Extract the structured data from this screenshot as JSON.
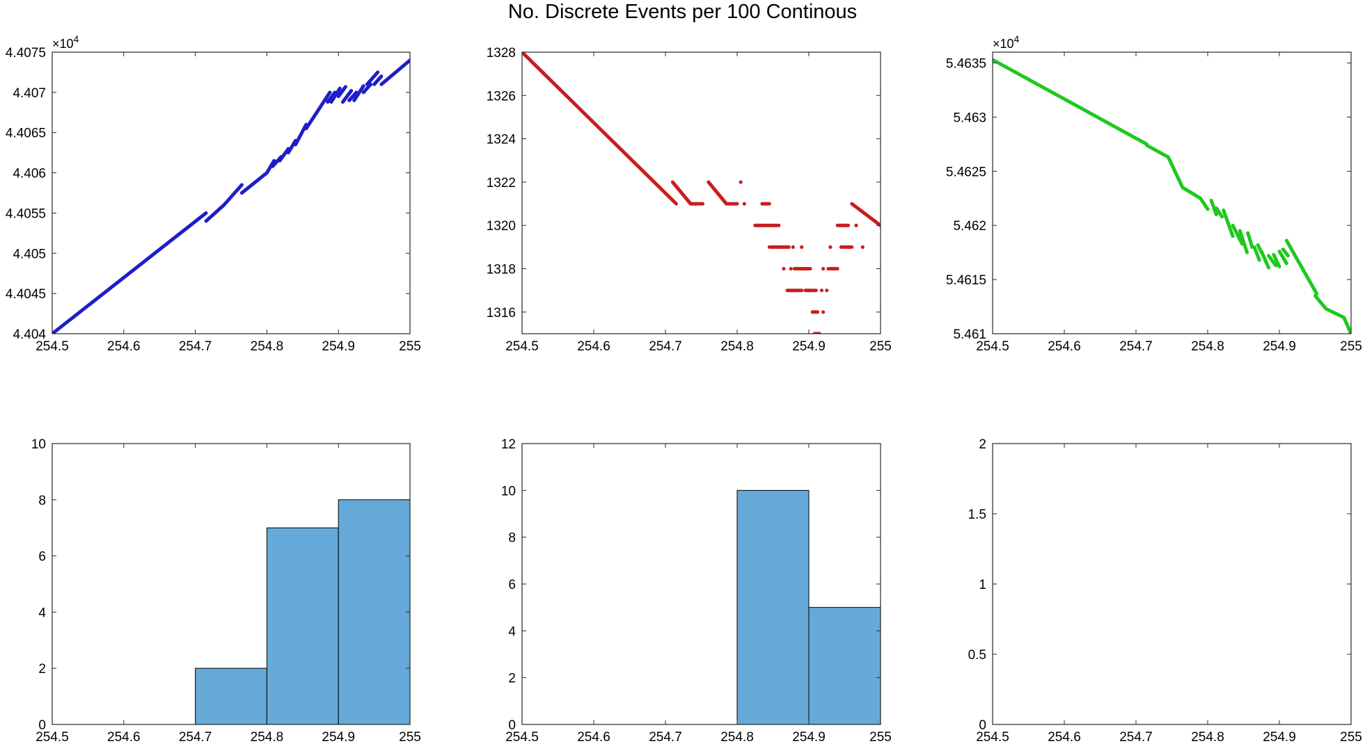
{
  "figure": {
    "title": "No. Discrete Events per 100 Continous"
  },
  "colors": {
    "blue_line": "#1e1ec8",
    "red_line": "#c81e1e",
    "green_line": "#1ec81e",
    "hist_fill": "#65aad8",
    "axis": "#262626"
  },
  "chart_data": [
    {
      "id": "top-left",
      "type": "line",
      "color": "#1e1ec8",
      "xlim": [
        254.5,
        255
      ],
      "ylim": [
        44040,
        44075
      ],
      "xticks": [
        "254.5",
        "254.6",
        "254.7",
        "254.8",
        "254.9",
        "255"
      ],
      "yticks": [
        "4.404",
        "4.4045",
        "4.405",
        "4.4055",
        "4.406",
        "4.4065",
        "4.407",
        "4.4075"
      ],
      "exponent": "4",
      "segments": [
        [
          [
            254.5,
            44040
          ],
          [
            254.715,
            44055
          ]
        ],
        [
          [
            254.715,
            44054
          ],
          [
            254.74,
            44056
          ],
          [
            254.765,
            44058.5
          ]
        ],
        [
          [
            254.765,
            44057.5
          ],
          [
            254.8,
            44060
          ],
          [
            254.81,
            44061.5
          ]
        ],
        [
          [
            254.808,
            44060.8
          ],
          [
            254.82,
            44062
          ]
        ],
        [
          [
            254.818,
            44061.5
          ],
          [
            254.83,
            44063
          ]
        ],
        [
          [
            254.83,
            44062.5
          ],
          [
            254.84,
            44064
          ]
        ],
        [
          [
            254.84,
            44063.5
          ],
          [
            254.855,
            44066
          ]
        ],
        [
          [
            254.855,
            44065.5
          ],
          [
            254.888,
            44070
          ]
        ],
        [
          [
            254.885,
            44068.8
          ],
          [
            254.895,
            44070
          ]
        ],
        [
          [
            254.89,
            44068.8
          ],
          [
            254.902,
            44070.5
          ]
        ],
        [
          [
            254.9,
            44069.5
          ],
          [
            254.91,
            44070.7
          ]
        ],
        [
          [
            254.906,
            44068.8
          ],
          [
            254.918,
            44070.2
          ]
        ],
        [
          [
            254.915,
            44069
          ],
          [
            254.925,
            44070
          ]
        ],
        [
          [
            254.922,
            44069
          ],
          [
            254.935,
            44070.8
          ]
        ],
        [
          [
            254.935,
            44070
          ],
          [
            254.945,
            44071
          ]
        ],
        [
          [
            254.94,
            44071
          ],
          [
            254.955,
            44072.5
          ]
        ],
        [
          [
            254.95,
            44071
          ],
          [
            254.96,
            44072
          ]
        ],
        [
          [
            254.96,
            44071
          ],
          [
            255,
            44074
          ]
        ]
      ]
    },
    {
      "id": "top-middle",
      "type": "line",
      "color": "#c81e1e",
      "xlim": [
        254.5,
        255
      ],
      "ylim": [
        1315,
        1328
      ],
      "xticks": [
        "254.5",
        "254.6",
        "254.7",
        "254.8",
        "254.9",
        "255"
      ],
      "yticks": [
        "1316",
        "1318",
        "1320",
        "1322",
        "1324",
        "1326",
        "1328"
      ],
      "segments": [
        [
          [
            254.5,
            1328
          ],
          [
            254.715,
            1321
          ]
        ],
        [
          [
            254.71,
            1322
          ],
          [
            254.735,
            1321
          ],
          [
            254.752,
            1321
          ]
        ],
        [
          [
            254.76,
            1322
          ],
          [
            254.785,
            1321
          ],
          [
            254.8,
            1321
          ]
        ],
        [
          [
            254.825,
            1320
          ],
          [
            254.855,
            1320
          ]
        ],
        [
          [
            254.835,
            1321
          ],
          [
            254.845,
            1321
          ]
        ],
        [
          [
            254.845,
            1319
          ],
          [
            254.87,
            1319
          ]
        ],
        [
          [
            254.87,
            1317
          ],
          [
            254.89,
            1317
          ]
        ],
        [
          [
            254.88,
            1318
          ],
          [
            254.902,
            1318
          ]
        ],
        [
          [
            254.895,
            1317
          ],
          [
            254.91,
            1317
          ]
        ],
        [
          [
            254.905,
            1316
          ],
          [
            254.912,
            1316
          ]
        ],
        [
          [
            254.91,
            1315
          ],
          [
            254.915,
            1315
          ]
        ],
        [
          [
            254.93,
            1318
          ],
          [
            254.94,
            1318
          ]
        ],
        [
          [
            254.94,
            1320
          ],
          [
            254.955,
            1320
          ]
        ],
        [
          [
            254.945,
            1319
          ],
          [
            254.96,
            1319
          ]
        ],
        [
          [
            254.96,
            1321
          ],
          [
            255,
            1320
          ]
        ]
      ],
      "points": [
        [
          254.805,
          1322
        ],
        [
          254.81,
          1321
        ],
        [
          254.83,
          1320
        ],
        [
          254.835,
          1321
        ],
        [
          254.84,
          1321
        ],
        [
          254.858,
          1320
        ],
        [
          254.86,
          1319
        ],
        [
          254.872,
          1319
        ],
        [
          254.878,
          1319
        ],
        [
          254.89,
          1319
        ],
        [
          254.865,
          1318
        ],
        [
          254.875,
          1318
        ],
        [
          254.885,
          1317
        ],
        [
          254.888,
          1318
        ],
        [
          254.9,
          1317
        ],
        [
          254.918,
          1317
        ],
        [
          254.92,
          1318
        ],
        [
          254.925,
          1317
        ],
        [
          254.93,
          1319
        ],
        [
          254.95,
          1320
        ],
        [
          254.956,
          1319
        ],
        [
          254.966,
          1320
        ],
        [
          254.975,
          1319
        ],
        [
          254.908,
          1315
        ],
        [
          254.912,
          1316
        ],
        [
          254.92,
          1316
        ],
        [
          254.927,
          1318
        ],
        [
          254.915,
          1314.9
        ]
      ]
    },
    {
      "id": "top-right",
      "type": "line",
      "color": "#1ec81e",
      "xlim": [
        254.5,
        255
      ],
      "ylim": [
        54610,
        54636
      ],
      "xticks": [
        "254.5",
        "254.6",
        "254.7",
        "254.8",
        "254.9",
        "255"
      ],
      "yticks": [
        "5.461",
        "5.4615",
        "5.462",
        "5.4625",
        "5.463",
        "5.4635"
      ],
      "exponent": "4",
      "segments": [
        [
          [
            254.5,
            54635.3
          ],
          [
            254.715,
            54627.5
          ]
        ],
        [
          [
            254.715,
            54627.4
          ],
          [
            254.745,
            54626.3
          ],
          [
            254.765,
            54623.5
          ],
          [
            254.79,
            54622.5
          ],
          [
            254.8,
            54621.5
          ]
        ],
        [
          [
            254.805,
            54622.3
          ],
          [
            254.812,
            54621
          ]
        ],
        [
          [
            254.812,
            54621.6
          ],
          [
            254.82,
            54620.8
          ]
        ],
        [
          [
            254.822,
            54621.4
          ],
          [
            254.835,
            54619
          ]
        ],
        [
          [
            254.835,
            54620
          ],
          [
            254.848,
            54618.3
          ]
        ],
        [
          [
            254.845,
            54619.5
          ],
          [
            254.855,
            54617.5
          ]
        ],
        [
          [
            254.856,
            54619.3
          ],
          [
            254.862,
            54618
          ]
        ],
        [
          [
            254.865,
            54618
          ],
          [
            254.872,
            54616.8
          ]
        ],
        [
          [
            254.87,
            54618.2
          ],
          [
            254.875,
            54617.5
          ]
        ],
        [
          [
            254.875,
            54617.6
          ],
          [
            254.885,
            54616.1
          ]
        ],
        [
          [
            254.885,
            54617.2
          ],
          [
            254.895,
            54616.3
          ]
        ],
        [
          [
            254.892,
            54617.3
          ],
          [
            254.9,
            54616.2
          ]
        ],
        [
          [
            254.9,
            54617.6
          ],
          [
            254.91,
            54616.5
          ]
        ],
        [
          [
            254.905,
            54617.8
          ],
          [
            254.912,
            54617.2
          ]
        ],
        [
          [
            254.91,
            54618.6
          ],
          [
            254.952,
            54613.7
          ]
        ],
        [
          [
            254.95,
            54613.5
          ],
          [
            254.965,
            54612.3
          ],
          [
            254.99,
            54611.5
          ],
          [
            255,
            54610
          ]
        ]
      ]
    },
    {
      "id": "bottom-left",
      "type": "bar",
      "color": "#65aad8",
      "xlim": [
        254.5,
        255
      ],
      "ylim": [
        0,
        10
      ],
      "xticks": [
        "254.5",
        "254.6",
        "254.7",
        "254.8",
        "254.9",
        "255"
      ],
      "yticks": [
        "0",
        "2",
        "4",
        "6",
        "8",
        "10"
      ],
      "bins": [
        [
          254.7,
          254.8
        ],
        [
          254.8,
          254.9
        ],
        [
          254.9,
          255
        ]
      ],
      "values": [
        2,
        7,
        8
      ]
    },
    {
      "id": "bottom-middle",
      "type": "bar",
      "color": "#65aad8",
      "xlim": [
        254.5,
        255
      ],
      "ylim": [
        0,
        12
      ],
      "xticks": [
        "254.5",
        "254.6",
        "254.7",
        "254.8",
        "254.9",
        "255"
      ],
      "yticks": [
        "0",
        "2",
        "4",
        "6",
        "8",
        "10",
        "12"
      ],
      "bins": [
        [
          254.8,
          254.9
        ],
        [
          254.9,
          255
        ]
      ],
      "values": [
        10,
        5
      ]
    },
    {
      "id": "bottom-right",
      "type": "bar",
      "color": "#65aad8",
      "xlim": [
        254.5,
        255
      ],
      "ylim": [
        0,
        2
      ],
      "xticks": [
        "254.5",
        "254.6",
        "254.7",
        "254.8",
        "254.9",
        "255"
      ],
      "yticks": [
        "0",
        "0.5",
        "1",
        "1.5",
        "2"
      ],
      "bins": [],
      "values": []
    }
  ]
}
